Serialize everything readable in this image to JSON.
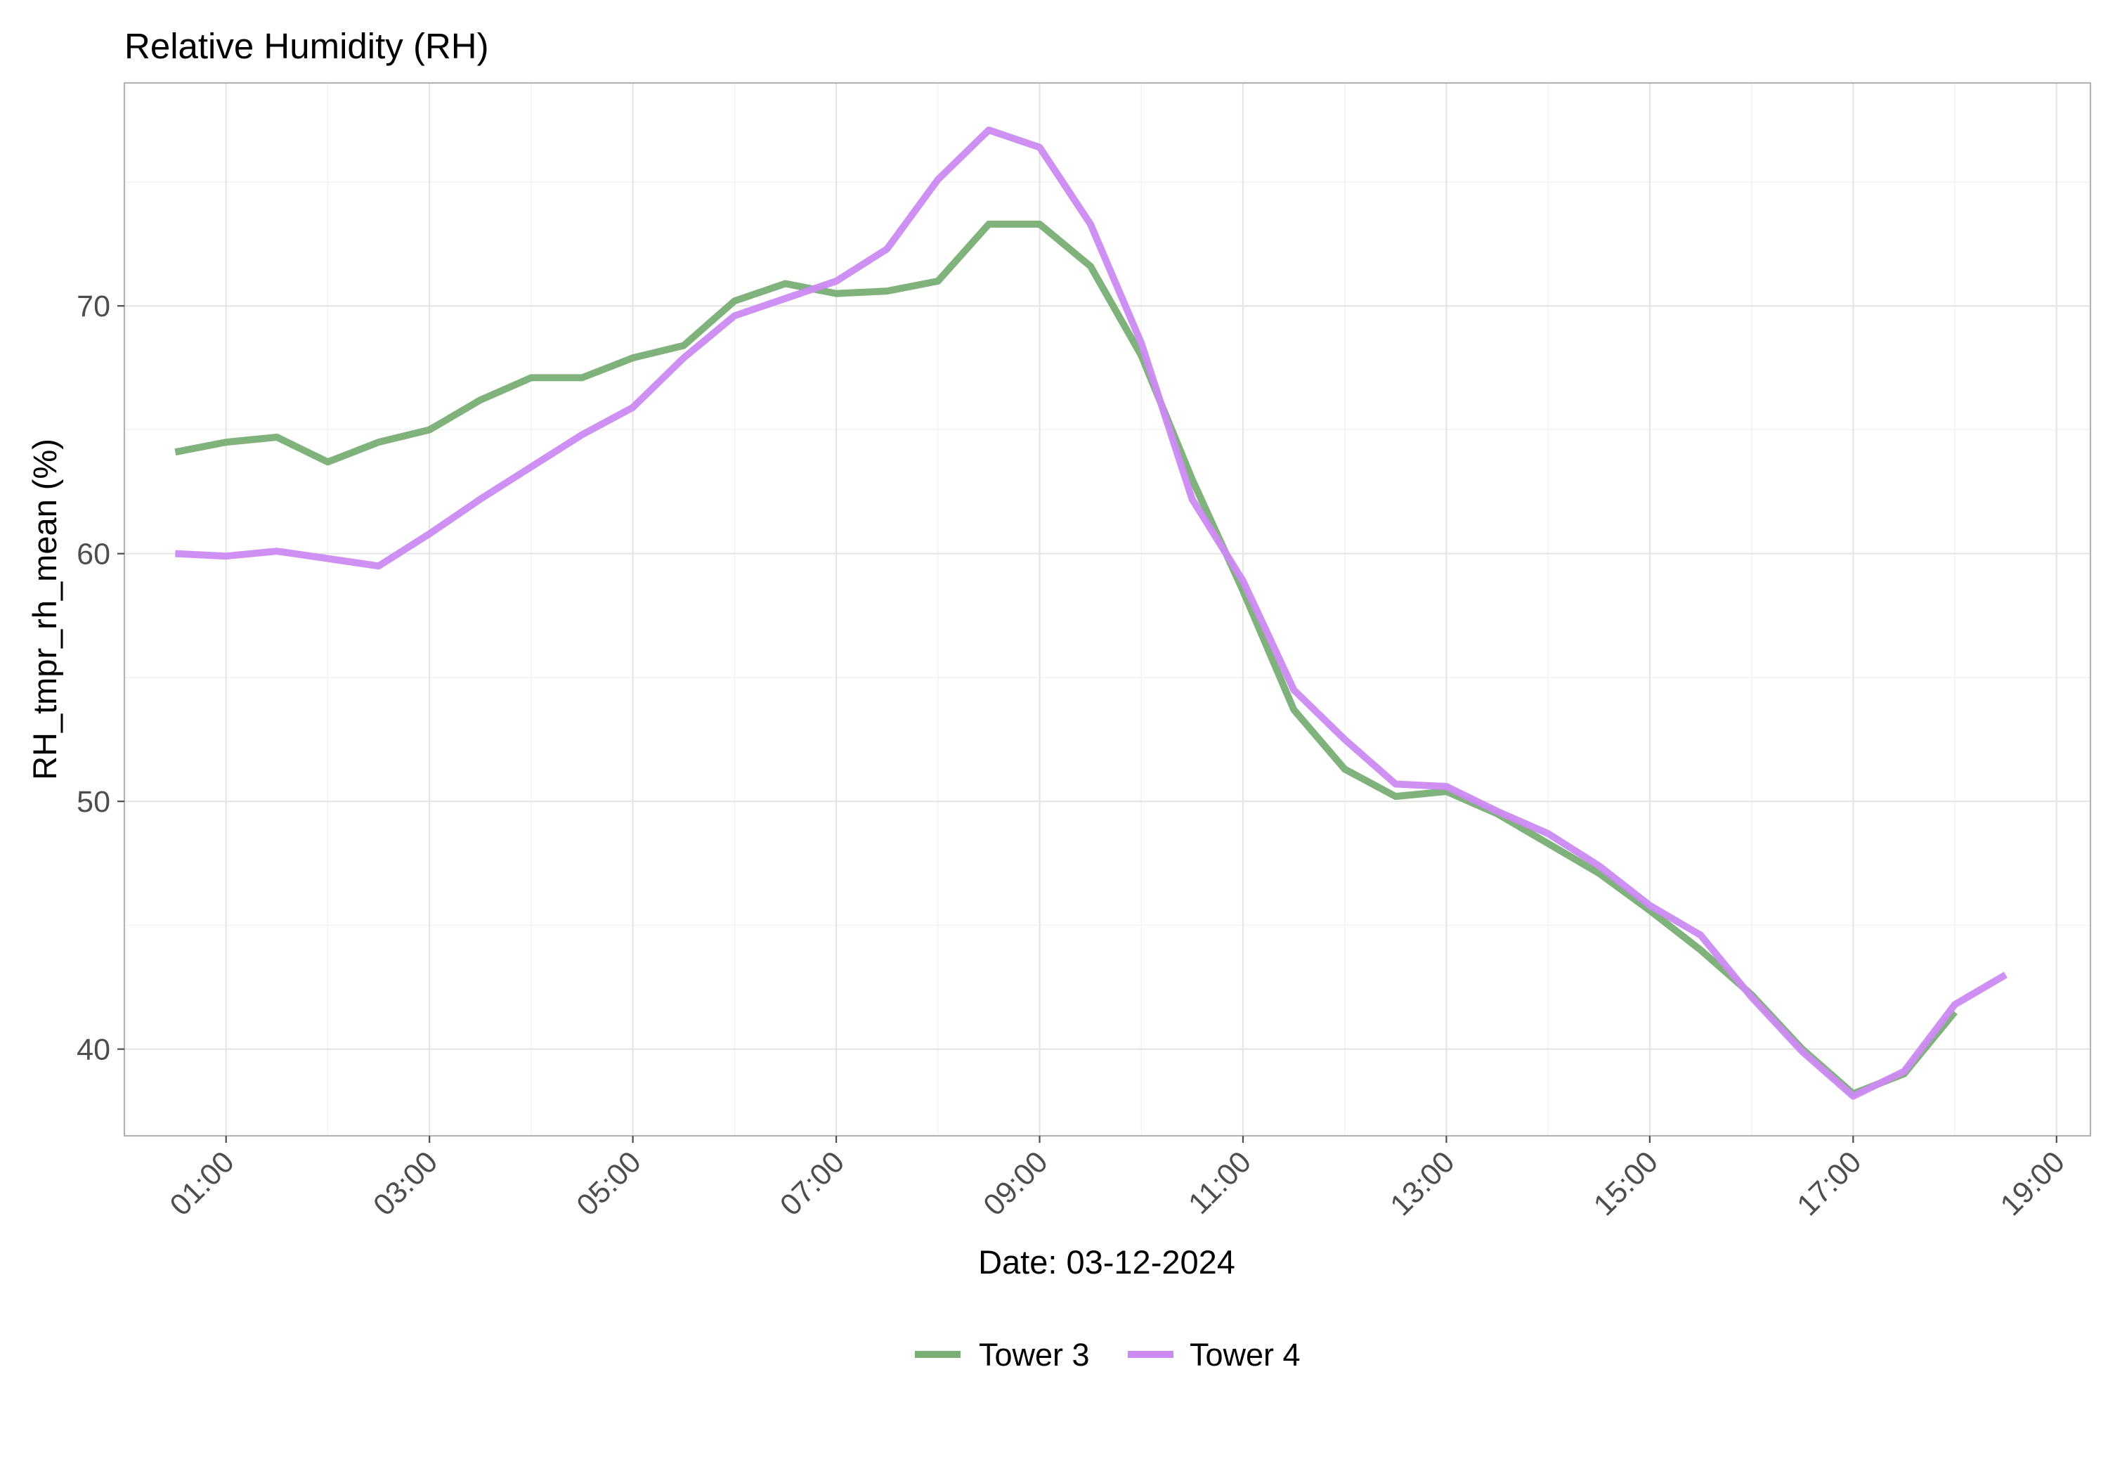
{
  "chart_data": {
    "type": "line",
    "title": "Relative Humidity (RH)",
    "xlabel": "Date: 03-12-2024",
    "ylabel": "RH_tmpr_rh_mean (%)",
    "x_ticks": [
      "01:00",
      "03:00",
      "05:00",
      "07:00",
      "09:00",
      "11:00",
      "13:00",
      "15:00",
      "17:00",
      "19:00"
    ],
    "y_ticks": [
      40,
      50,
      60,
      70
    ],
    "xlim": [
      "00:00",
      "19:20"
    ],
    "ylim": [
      36.5,
      79
    ],
    "grid": true,
    "legend_position": "bottom",
    "series": [
      {
        "name": "Tower 3",
        "color": "#79AE75",
        "x": [
          "00:30",
          "01:00",
          "01:30",
          "02:00",
          "02:30",
          "03:00",
          "03:30",
          "04:00",
          "04:30",
          "05:00",
          "05:30",
          "06:00",
          "06:30",
          "07:00",
          "07:30",
          "08:00",
          "08:30",
          "09:00",
          "09:30",
          "10:00",
          "10:30",
          "11:00",
          "11:30",
          "12:00",
          "12:30",
          "13:00",
          "13:30",
          "14:00",
          "14:30",
          "15:00",
          "15:30",
          "16:00",
          "16:30",
          "17:00",
          "17:30",
          "18:00"
        ],
        "values": [
          64.1,
          64.5,
          64.7,
          63.7,
          64.5,
          65.0,
          66.2,
          67.1,
          67.1,
          67.9,
          68.4,
          70.2,
          70.9,
          70.5,
          70.6,
          71.0,
          73.3,
          73.3,
          71.6,
          68.0,
          63.0,
          58.5,
          53.7,
          51.3,
          50.2,
          50.4,
          49.5,
          48.3,
          47.1,
          45.6,
          44.0,
          42.2,
          40.0,
          38.2,
          39.0,
          41.5
        ]
      },
      {
        "name": "Tower 4",
        "color": "#CC8AF2",
        "x": [
          "00:30",
          "01:00",
          "01:30",
          "02:00",
          "02:30",
          "03:00",
          "03:30",
          "04:00",
          "04:30",
          "05:00",
          "05:30",
          "06:00",
          "06:30",
          "07:00",
          "07:30",
          "08:00",
          "08:30",
          "09:00",
          "09:30",
          "10:00",
          "10:30",
          "11:00",
          "11:30",
          "12:00",
          "12:30",
          "13:00",
          "13:30",
          "14:00",
          "14:30",
          "15:00",
          "15:30",
          "16:00",
          "16:30",
          "17:00",
          "17:30",
          "18:00",
          "18:30"
        ],
        "values": [
          60.0,
          59.9,
          60.1,
          59.8,
          59.5,
          60.8,
          62.2,
          63.5,
          64.8,
          65.9,
          67.9,
          69.6,
          70.3,
          71.0,
          72.3,
          75.1,
          77.1,
          76.4,
          73.3,
          68.5,
          62.2,
          58.9,
          54.5,
          52.5,
          50.7,
          50.6,
          49.6,
          48.7,
          47.4,
          45.8,
          44.6,
          42.1,
          39.9,
          38.1,
          39.1,
          41.8,
          43.0
        ]
      }
    ]
  }
}
